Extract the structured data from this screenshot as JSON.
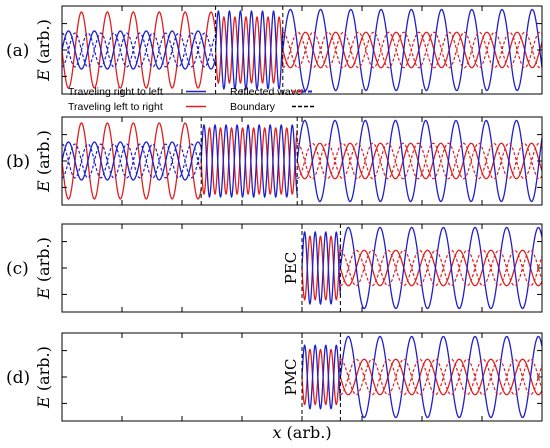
{
  "chart_data": {
    "type": "line",
    "xlabel": "x (arb.)",
    "ylabel": "E (arb.)",
    "legend": {
      "placement": "between panels (a) and (b)",
      "entries": [
        {
          "label": "Traveling right to left",
          "color": "#1f1fcc",
          "style": "solid"
        },
        {
          "label": "Traveling left to right",
          "color": "#e02020",
          "style": "solid"
        },
        {
          "label": "Reflected wave",
          "colors": [
            "#e02020",
            "#1f1fcc"
          ],
          "style": "dashed"
        },
        {
          "label": "Boundary",
          "color": "#000000",
          "style": "dashed"
        }
      ]
    },
    "colors": {
      "right_to_left": "#1f1fcc",
      "left_to_right": "#e02020",
      "boundary": "#000000",
      "sum": "#8b3a3a"
    },
    "x_range": [
      0,
      1
    ],
    "grid": false,
    "panels": [
      {
        "label": "(a)",
        "boundaries": [
          0.32,
          0.46
        ],
        "boundary_text": "",
        "regions": [
          {
            "x": [
              0,
              0.32
            ],
            "period": 0.054,
            "blue_amp": 0.45,
            "red_amp": 0.9,
            "dashed_amp": 0.4,
            "dashed": true,
            "empty": false
          },
          {
            "x": [
              0.32,
              0.46
            ],
            "period": 0.023,
            "blue_amp": 0.92,
            "red_amp": 0.78,
            "dashed_amp": 0,
            "dashed": false,
            "empty": false
          },
          {
            "x": [
              0.46,
              1.0
            ],
            "period": 0.063,
            "blue_amp": 0.96,
            "red_amp": 0.42,
            "dashed_amp": 0.42,
            "dashed": true,
            "empty": false
          }
        ]
      },
      {
        "label": "(b)",
        "boundaries": [
          0.29,
          0.49
        ],
        "boundary_text": "",
        "regions": [
          {
            "x": [
              0,
              0.29
            ],
            "period": 0.054,
            "blue_amp": 0.45,
            "red_amp": 0.9,
            "dashed_amp": 0.4,
            "dashed": true,
            "empty": false
          },
          {
            "x": [
              0.29,
              0.49
            ],
            "period": 0.023,
            "blue_amp": 0.85,
            "red_amp": 0.78,
            "dashed_amp": 0,
            "dashed": false,
            "empty": false
          },
          {
            "x": [
              0.49,
              1.0
            ],
            "period": 0.063,
            "blue_amp": 0.96,
            "red_amp": 0.42,
            "dashed_amp": 0.42,
            "dashed": true,
            "empty": false
          }
        ]
      },
      {
        "label": "(c)",
        "boundaries": [
          0.5,
          0.58
        ],
        "boundary_text": "PEC",
        "regions": [
          {
            "x": [
              0,
              0.5
            ],
            "period": 0.05,
            "blue_amp": 0,
            "red_amp": 0,
            "dashed_amp": 0,
            "dashed": false,
            "empty": true
          },
          {
            "x": [
              0.5,
              0.58
            ],
            "period": 0.022,
            "blue_amp": 0.85,
            "red_amp": 0.75,
            "dashed_amp": 0,
            "dashed": false,
            "empty": false
          },
          {
            "x": [
              0.58,
              1.0
            ],
            "period": 0.066,
            "blue_amp": 0.96,
            "red_amp": 0.42,
            "dashed_amp": 0.42,
            "dashed": true,
            "empty": false
          }
        ]
      },
      {
        "label": "(d)",
        "boundaries": [
          0.5,
          0.58
        ],
        "boundary_text": "PMC",
        "regions": [
          {
            "x": [
              0,
              0.5
            ],
            "period": 0.05,
            "blue_amp": 0,
            "red_amp": 0,
            "dashed_amp": 0,
            "dashed": false,
            "empty": true
          },
          {
            "x": [
              0.5,
              0.58
            ],
            "period": 0.022,
            "blue_amp": 0.75,
            "red_amp": 0.65,
            "dashed_amp": 0,
            "dashed": false,
            "empty": false
          },
          {
            "x": [
              0.58,
              1.0
            ],
            "period": 0.066,
            "blue_amp": 0.96,
            "red_amp": 0.42,
            "dashed_amp": 0.42,
            "dashed": true,
            "empty": false
          }
        ]
      }
    ]
  }
}
